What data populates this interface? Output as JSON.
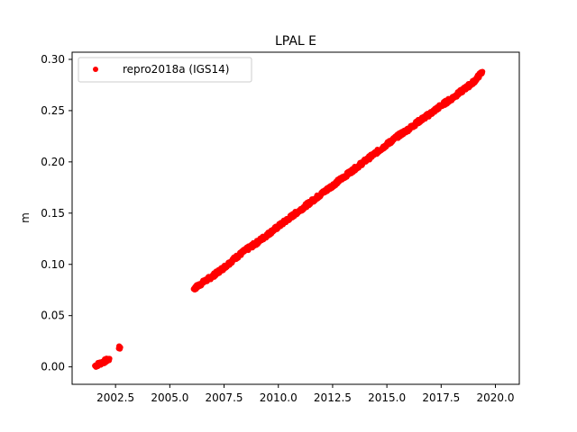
{
  "chart_data": {
    "type": "scatter",
    "title": "LPAL E",
    "xlabel": "",
    "ylabel": "m",
    "xlim": [
      2000.5,
      2021.1
    ],
    "ylim": [
      -0.017,
      0.307
    ],
    "x_ticks": [
      2002.5,
      2005.0,
      2007.5,
      2010.0,
      2012.5,
      2015.0,
      2017.5,
      2020.0
    ],
    "x_tick_labels": [
      "2002.5",
      "2005.0",
      "2007.5",
      "2010.0",
      "2012.5",
      "2015.0",
      "2017.5",
      "2020.0"
    ],
    "y_ticks": [
      0.0,
      0.05,
      0.1,
      0.15,
      0.2,
      0.25,
      0.3
    ],
    "y_tick_labels": [
      "0.00",
      "0.05",
      "0.10",
      "0.15",
      "0.20",
      "0.25",
      "0.30"
    ],
    "grid": false,
    "legend": {
      "placement": "top-left",
      "entries": [
        "repro2018a (IGS14)"
      ]
    },
    "series": [
      {
        "name": "repro2018a (IGS14)",
        "color": "#ff0000",
        "marker": "circle",
        "x": [
          2001.55,
          2001.65,
          2001.75,
          2001.85,
          2001.95,
          2002.05,
          2002.15,
          2002.22,
          2002.65,
          2002.72,
          2006.1,
          2006.5,
          2007.0,
          2007.5,
          2008.0,
          2008.5,
          2009.0,
          2009.5,
          2010.0,
          2010.5,
          2011.0,
          2011.5,
          2012.0,
          2012.5,
          2013.0,
          2013.5,
          2014.0,
          2014.5,
          2015.0,
          2015.5,
          2016.0,
          2016.5,
          2017.0,
          2017.5,
          2018.0,
          2018.5,
          2019.0,
          2019.4
        ],
        "y": [
          0.001,
          0.002,
          0.003,
          0.004,
          0.005,
          0.006,
          0.007,
          0.008,
          0.018,
          0.019,
          0.076,
          0.082,
          0.089,
          0.097,
          0.106,
          0.114,
          0.121,
          0.129,
          0.137,
          0.145,
          0.153,
          0.161,
          0.169,
          0.177,
          0.185,
          0.193,
          0.201,
          0.209,
          0.217,
          0.225,
          0.232,
          0.24,
          0.247,
          0.255,
          0.262,
          0.27,
          0.278,
          0.288
        ]
      }
    ]
  }
}
